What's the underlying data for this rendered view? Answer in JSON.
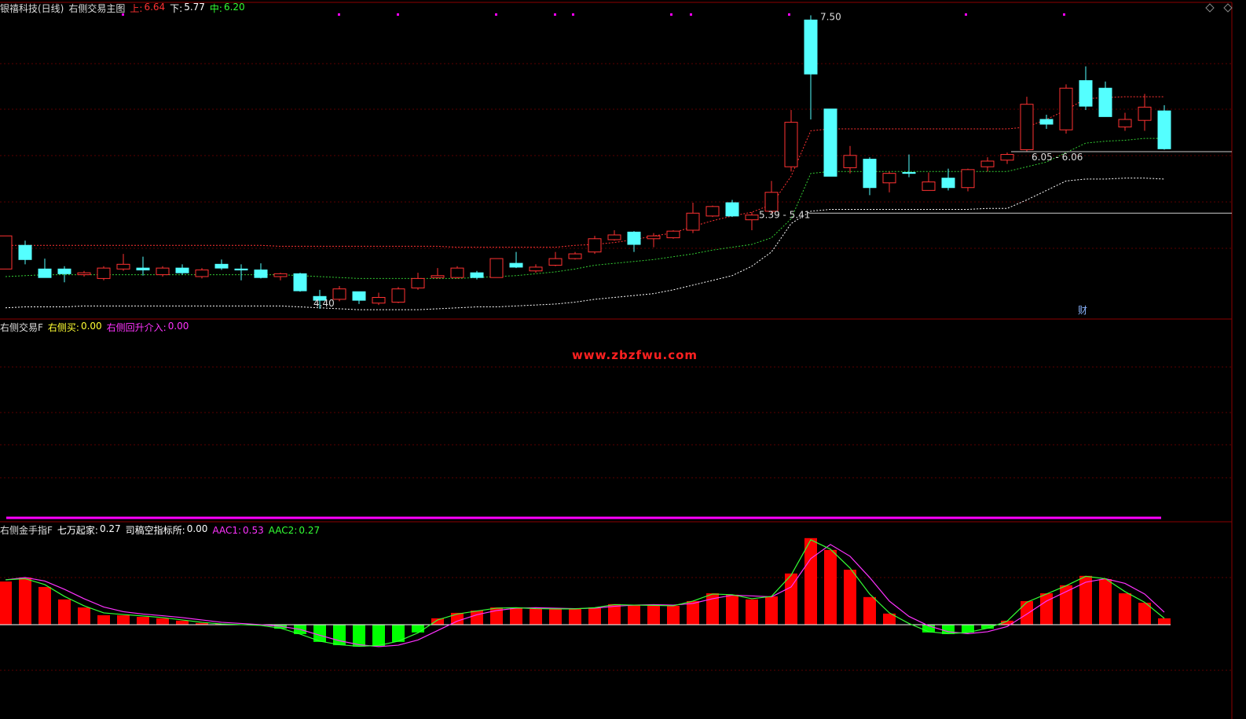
{
  "header": {
    "symbol": "银禧科技(日线)",
    "indicator": "右侧交易主图",
    "readouts": [
      {
        "label": "上:",
        "value": "6.64",
        "color": "#ff3232"
      },
      {
        "label": "下:",
        "value": "5.77",
        "color": "#ffffff"
      },
      {
        "label": "中:",
        "value": "6.20",
        "color": "#33ff33"
      }
    ]
  },
  "mid_panel": {
    "name": "右侧交易F",
    "readouts": [
      {
        "label": "右侧买:",
        "value": "0.00",
        "color": "#ffff33"
      },
      {
        "label": "右侧回升介入:",
        "value": "0.00",
        "color": "#ff33ff"
      }
    ],
    "watermark": "www.zbzfwu.com"
  },
  "bottom_header": {
    "name": "右侧金手指F",
    "readouts": [
      {
        "label": "七万起家:",
        "value": "0.27",
        "color": "#ffffff"
      },
      {
        "label": "司稿空指标所:",
        "value": "0.00",
        "color": "#ffffff"
      },
      {
        "label": "AAC1:",
        "value": "0.53",
        "color": "#ff33ff"
      },
      {
        "label": "AAC2:",
        "value": "0.27",
        "color": "#33ff33"
      }
    ]
  },
  "chart_data": [
    {
      "type": "candlestick",
      "ylim": [
        4.3,
        7.62
      ],
      "up_color": "#ff3232",
      "down_color": "#54ffff",
      "open": [
        4.82,
        5.07,
        4.82,
        4.82,
        4.76,
        4.72,
        4.82,
        4.83,
        4.76,
        4.83,
        4.74,
        4.87,
        4.82,
        4.81,
        4.74,
        4.77,
        4.53,
        4.5,
        4.58,
        4.46,
        4.47,
        4.62,
        4.73,
        4.73,
        4.78,
        4.73,
        4.88,
        4.8,
        4.86,
        4.93,
        5.0,
        5.13,
        5.21,
        5.14,
        5.15,
        5.23,
        5.38,
        5.52,
        5.34,
        5.43,
        5.9,
        7.45,
        6.51,
        5.89,
        5.98,
        5.73,
        5.84,
        5.65,
        5.78,
        5.68,
        5.9,
        5.97,
        6.08,
        6.4,
        6.29,
        6.81,
        6.73,
        6.32,
        6.39,
        6.49
      ],
      "high": [
        5.17,
        5.12,
        4.93,
        4.85,
        4.8,
        4.85,
        4.98,
        4.95,
        4.85,
        4.87,
        4.83,
        4.92,
        4.87,
        4.88,
        4.78,
        4.78,
        4.6,
        4.64,
        4.58,
        4.57,
        4.63,
        4.78,
        4.83,
        4.85,
        4.8,
        4.93,
        5.0,
        4.87,
        5.0,
        5.0,
        5.17,
        5.23,
        5.22,
        5.2,
        5.23,
        5.52,
        5.49,
        5.55,
        5.42,
        5.75,
        6.5,
        7.5,
        6.51,
        6.12,
        6.0,
        5.85,
        6.03,
        5.84,
        5.88,
        5.88,
        6.0,
        6.05,
        6.64,
        6.45,
        6.77,
        6.96,
        6.8,
        6.47,
        6.67,
        6.55
      ],
      "low": [
        4.82,
        4.87,
        4.73,
        4.68,
        4.74,
        4.7,
        4.8,
        4.75,
        4.74,
        4.76,
        4.72,
        4.81,
        4.7,
        4.72,
        4.7,
        4.58,
        4.4,
        4.48,
        4.45,
        4.44,
        4.46,
        4.6,
        4.72,
        4.72,
        4.71,
        4.73,
        4.83,
        4.78,
        4.85,
        4.92,
        4.98,
        5.12,
        5.0,
        5.05,
        5.14,
        5.2,
        5.37,
        5.37,
        5.23,
        5.41,
        5.85,
        6.4,
        5.8,
        5.83,
        5.6,
        5.63,
        5.79,
        5.65,
        5.65,
        5.64,
        5.85,
        5.93,
        6.06,
        6.3,
        6.25,
        6.5,
        6.43,
        6.28,
        6.28,
        6.08
      ],
      "close": [
        5.17,
        4.92,
        4.73,
        4.77,
        4.78,
        4.83,
        4.87,
        4.81,
        4.83,
        4.78,
        4.81,
        4.83,
        4.81,
        4.73,
        4.77,
        4.59,
        4.49,
        4.61,
        4.49,
        4.52,
        4.61,
        4.72,
        4.75,
        4.83,
        4.73,
        4.93,
        4.84,
        4.84,
        4.93,
        4.98,
        5.14,
        5.18,
        5.08,
        5.17,
        5.22,
        5.41,
        5.48,
        5.38,
        5.39,
        5.63,
        6.37,
        6.88,
        5.8,
        6.02,
        5.68,
        5.83,
        5.83,
        5.74,
        5.68,
        5.87,
        5.96,
        6.03,
        6.56,
        6.35,
        6.73,
        6.54,
        6.43,
        6.4,
        6.53,
        6.09
      ],
      "bands": [
        {
          "color": "#ff3232",
          "values": [
            5.07,
            5.07,
            5.07,
            5.07,
            5.07,
            5.07,
            5.07,
            5.07,
            5.07,
            5.07,
            5.07,
            5.07,
            5.07,
            5.07,
            5.06,
            5.06,
            5.06,
            5.06,
            5.06,
            5.06,
            5.06,
            5.06,
            5.06,
            5.05,
            5.05,
            5.05,
            5.05,
            5.05,
            5.05,
            5.07,
            5.08,
            5.1,
            5.13,
            5.17,
            5.2,
            5.27,
            5.33,
            5.38,
            5.42,
            5.5,
            5.8,
            6.28,
            6.3,
            6.3,
            6.3,
            6.3,
            6.3,
            6.3,
            6.3,
            6.3,
            6.3,
            6.3,
            6.32,
            6.4,
            6.5,
            6.62,
            6.63,
            6.64,
            6.64,
            6.64
          ]
        },
        {
          "color": "#33cc33",
          "values": [
            4.74,
            4.75,
            4.76,
            4.76,
            4.76,
            4.76,
            4.76,
            4.76,
            4.76,
            4.76,
            4.76,
            4.76,
            4.76,
            4.76,
            4.76,
            4.75,
            4.74,
            4.73,
            4.72,
            4.72,
            4.72,
            4.72,
            4.72,
            4.72,
            4.73,
            4.74,
            4.75,
            4.77,
            4.79,
            4.82,
            4.86,
            4.88,
            4.9,
            4.92,
            4.95,
            4.98,
            5.02,
            5.05,
            5.08,
            5.15,
            5.35,
            5.83,
            5.85,
            5.85,
            5.85,
            5.85,
            5.85,
            5.85,
            5.85,
            5.85,
            5.85,
            5.85,
            5.9,
            5.95,
            6.05,
            6.15,
            6.17,
            6.18,
            6.2,
            6.2
          ]
        },
        {
          "color": "#ffffff",
          "values": [
            4.41,
            4.42,
            4.42,
            4.42,
            4.43,
            4.43,
            4.43,
            4.43,
            4.43,
            4.43,
            4.43,
            4.43,
            4.43,
            4.43,
            4.43,
            4.42,
            4.41,
            4.4,
            4.39,
            4.39,
            4.39,
            4.39,
            4.4,
            4.41,
            4.42,
            4.42,
            4.43,
            4.44,
            4.45,
            4.47,
            4.5,
            4.52,
            4.54,
            4.56,
            4.6,
            4.65,
            4.7,
            4.75,
            4.85,
            5.0,
            5.3,
            5.43,
            5.45,
            5.45,
            5.45,
            5.45,
            5.45,
            5.45,
            5.45,
            5.45,
            5.46,
            5.46,
            5.55,
            5.65,
            5.75,
            5.77,
            5.77,
            5.78,
            5.78,
            5.77
          ]
        }
      ],
      "annotations": [
        "7.50",
        "4.40",
        "5.39 - 5.41",
        "6.05 - 6.06",
        "财"
      ]
    },
    {
      "type": "bar",
      "ylim": [
        -4,
        4.33
      ],
      "up_color": "#ff0000",
      "down_color": "#00ff00",
      "values": [
        1.83,
        2.0,
        1.6,
        1.07,
        0.73,
        0.4,
        0.4,
        0.33,
        0.27,
        0.17,
        0.07,
        0.03,
        0,
        -0.03,
        -0.17,
        -0.4,
        -0.73,
        -0.87,
        -0.93,
        -0.9,
        -0.73,
        -0.33,
        0.27,
        0.5,
        0.6,
        0.73,
        0.73,
        0.67,
        0.67,
        0.67,
        0.73,
        0.87,
        0.83,
        0.83,
        0.8,
        1.0,
        1.33,
        1.27,
        1.07,
        1.2,
        2.17,
        3.67,
        3.17,
        2.33,
        1.17,
        0.47,
        0,
        -0.33,
        -0.4,
        -0.33,
        -0.17,
        0.17,
        1.0,
        1.33,
        1.67,
        2.07,
        1.93,
        1.33,
        0.93,
        0.27
      ],
      "series": [
        {
          "name": "AAC1",
          "color": "#ff33ff",
          "values": [
            1.9,
            2.0,
            1.85,
            1.5,
            1.1,
            0.75,
            0.55,
            0.45,
            0.38,
            0.3,
            0.2,
            0.1,
            0.05,
            0,
            -0.07,
            -0.2,
            -0.45,
            -0.68,
            -0.85,
            -0.93,
            -0.87,
            -0.65,
            -0.25,
            0.15,
            0.42,
            0.6,
            0.7,
            0.72,
            0.7,
            0.68,
            0.7,
            0.78,
            0.83,
            0.85,
            0.83,
            0.9,
            1.1,
            1.25,
            1.22,
            1.18,
            1.6,
            2.8,
            3.4,
            2.9,
            2.0,
            1.0,
            0.35,
            -0.05,
            -0.3,
            -0.38,
            -0.3,
            -0.08,
            0.45,
            1.0,
            1.4,
            1.8,
            1.95,
            1.75,
            1.3,
            0.53
          ]
        },
        {
          "name": "AAC2",
          "color": "#33ff33",
          "values": [
            1.9,
            1.95,
            1.7,
            1.2,
            0.8,
            0.5,
            0.43,
            0.37,
            0.3,
            0.2,
            0.1,
            0.03,
            0,
            -0.03,
            -0.15,
            -0.4,
            -0.7,
            -0.85,
            -0.92,
            -0.88,
            -0.7,
            -0.35,
            0.2,
            0.45,
            0.58,
            0.7,
            0.72,
            0.68,
            0.67,
            0.67,
            0.72,
            0.85,
            0.83,
            0.82,
            0.8,
            1.0,
            1.3,
            1.27,
            1.1,
            1.2,
            2.1,
            3.6,
            3.2,
            2.4,
            1.3,
            0.5,
            0.05,
            -0.3,
            -0.38,
            -0.33,
            -0.15,
            0.15,
            0.95,
            1.3,
            1.65,
            2.05,
            1.95,
            1.4,
            0.95,
            0.27
          ]
        }
      ]
    }
  ]
}
